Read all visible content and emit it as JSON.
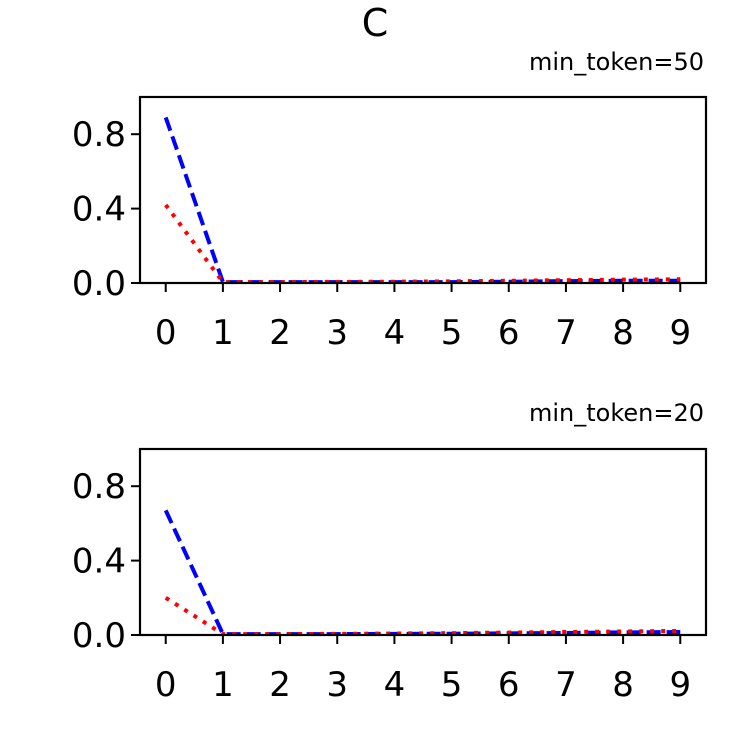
{
  "figure": {
    "title": "C"
  },
  "chart_data": [
    {
      "type": "line",
      "title": "min_token=50",
      "xlabel": "",
      "ylabel": "",
      "x": [
        0,
        1,
        2,
        3,
        4,
        5,
        6,
        7,
        8,
        9
      ],
      "xticks": [
        "0",
        "1",
        "2",
        "3",
        "4",
        "5",
        "6",
        "7",
        "8",
        "9"
      ],
      "yticks": [
        "0.0",
        "0.4",
        "0.8"
      ],
      "ylim": [
        0,
        1.0
      ],
      "xlim": [
        -0.45,
        9.45
      ],
      "grid": false,
      "series": [
        {
          "color": "#0000ff",
          "style": "dashed",
          "values": [
            0.89,
            0.005,
            0.005,
            0.005,
            0.005,
            0.005,
            0.007,
            0.01,
            0.012,
            0.012
          ]
        },
        {
          "color": "#ff0000",
          "style": "dotted",
          "values": [
            0.42,
            0.005,
            0.005,
            0.006,
            0.007,
            0.009,
            0.012,
            0.015,
            0.018,
            0.02
          ]
        }
      ]
    },
    {
      "type": "line",
      "title": "min_token=20",
      "xlabel": "",
      "ylabel": "",
      "x": [
        0,
        1,
        2,
        3,
        4,
        5,
        6,
        7,
        8,
        9
      ],
      "xticks": [
        "0",
        "1",
        "2",
        "3",
        "4",
        "5",
        "6",
        "7",
        "8",
        "9"
      ],
      "yticks": [
        "0.0",
        "0.4",
        "0.8"
      ],
      "ylim": [
        0,
        1.0
      ],
      "xlim": [
        -0.45,
        9.45
      ],
      "grid": false,
      "series": [
        {
          "color": "#0000ff",
          "style": "dashed",
          "values": [
            0.67,
            0.005,
            0.005,
            0.005,
            0.006,
            0.007,
            0.009,
            0.011,
            0.014,
            0.016
          ]
        },
        {
          "color": "#ff0000",
          "style": "dotted",
          "values": [
            0.2,
            0.005,
            0.005,
            0.006,
            0.008,
            0.01,
            0.013,
            0.016,
            0.019,
            0.022
          ]
        }
      ]
    }
  ]
}
